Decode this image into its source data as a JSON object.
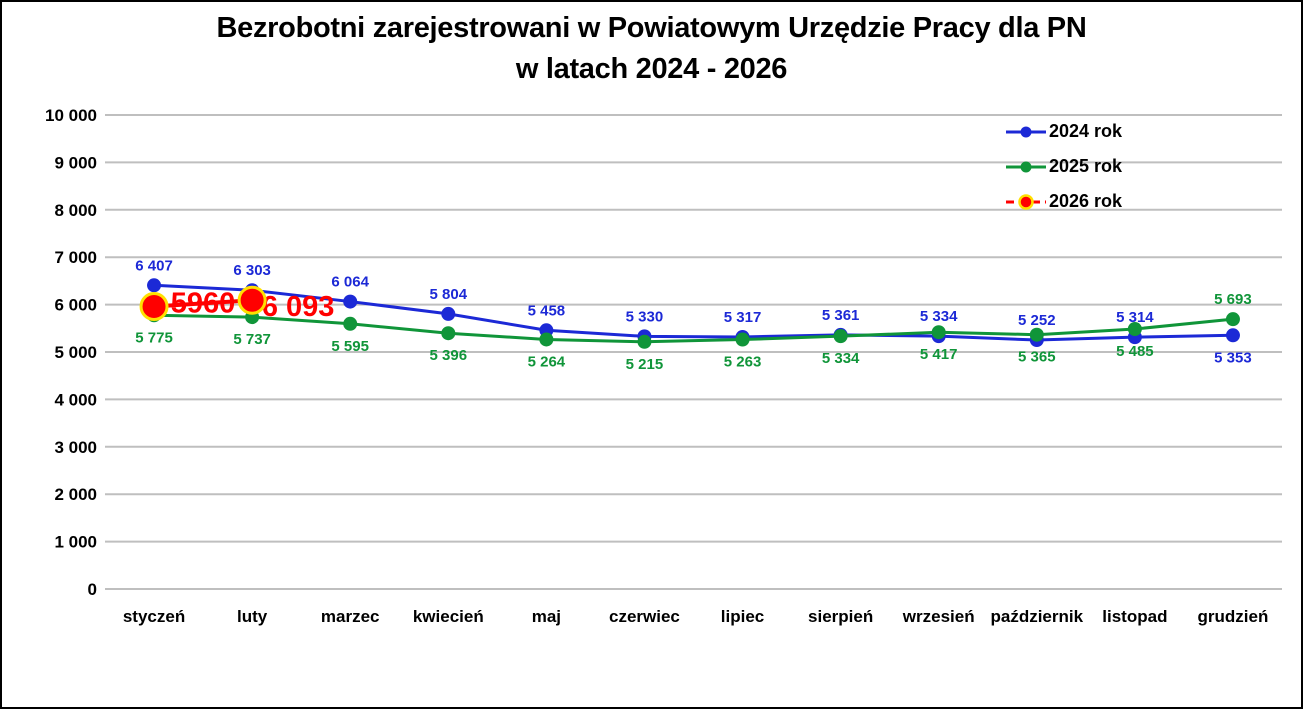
{
  "title": {
    "line1": "Bezrobotni zarejestrowani w Powiatowym Urzędzie Pracy dla PN",
    "line2": "w latach 2024 - 2026"
  },
  "colors": {
    "series_2024": "#1C29D6",
    "series_2025": "#109539",
    "series_2026": "#FF0000",
    "marker_ring_2026": "#FFE000",
    "gridline": "#BFBFBF",
    "axis_text": "#000000",
    "background": "#FFFFFF"
  },
  "chart_data": {
    "type": "line",
    "title": "Bezrobotni zarejestrowani w Powiatowym Urzędzie Pracy dla PN w latach 2024 - 2026",
    "categories": [
      "styczeń",
      "luty",
      "marzec",
      "kwiecień",
      "maj",
      "czerwiec",
      "lipiec",
      "sierpień",
      "wrzesień",
      "październik",
      "listopad",
      "grudzień"
    ],
    "ylim": [
      0,
      10000
    ],
    "ytick_step": 1000,
    "y_tick_labels": [
      "0",
      "1 000",
      "2 000",
      "3 000",
      "4 000",
      "5 000",
      "6 000",
      "7 000",
      "8 000",
      "9 000",
      "10 000"
    ],
    "grid": "horizontal",
    "legend_position": "top-right",
    "series": [
      {
        "name": "2024 rok",
        "color": "#1C29D6",
        "line_style": "solid",
        "marker": "dot",
        "values": [
          6407,
          6303,
          6064,
          5804,
          5458,
          5330,
          5317,
          5361,
          5334,
          5252,
          5314,
          5353
        ],
        "labels": [
          "6 407",
          "6 303",
          "6 064",
          "5 804",
          "5 458",
          "5 330",
          "5 317",
          "5 361",
          "5 334",
          "5 252",
          "5 314",
          "5 353"
        ],
        "label_side": "above",
        "label_side_overrides": {
          "11": "below"
        }
      },
      {
        "name": "2025 rok",
        "color": "#109539",
        "line_style": "solid",
        "marker": "dot",
        "values": [
          5775,
          5737,
          5595,
          5396,
          5264,
          5215,
          5263,
          5334,
          5417,
          5365,
          5485,
          5693
        ],
        "labels": [
          "5 775",
          "5 737",
          "5 595",
          "5 396",
          "5 264",
          "5 215",
          "5 263",
          "5 334",
          "5 417",
          "5 365",
          "5 485",
          "5 693"
        ],
        "label_side": "below",
        "label_side_overrides": {
          "11": "above"
        }
      },
      {
        "name": "2026 rok",
        "color": "#FF0000",
        "line_style": "solid",
        "legend_dash": true,
        "marker": "big-dot-yellow-ring",
        "marker_ring": "#FFE000",
        "values": [
          5960,
          6093,
          null,
          null,
          null,
          null,
          null,
          null,
          null,
          null,
          null,
          null
        ],
        "labels": [
          "5960",
          "6 093"
        ],
        "big_labels": true,
        "label_offsets": [
          {
            "dx": 49,
            "dy": 6
          },
          {
            "dx": 46,
            "dy": 16
          }
        ]
      }
    ]
  }
}
